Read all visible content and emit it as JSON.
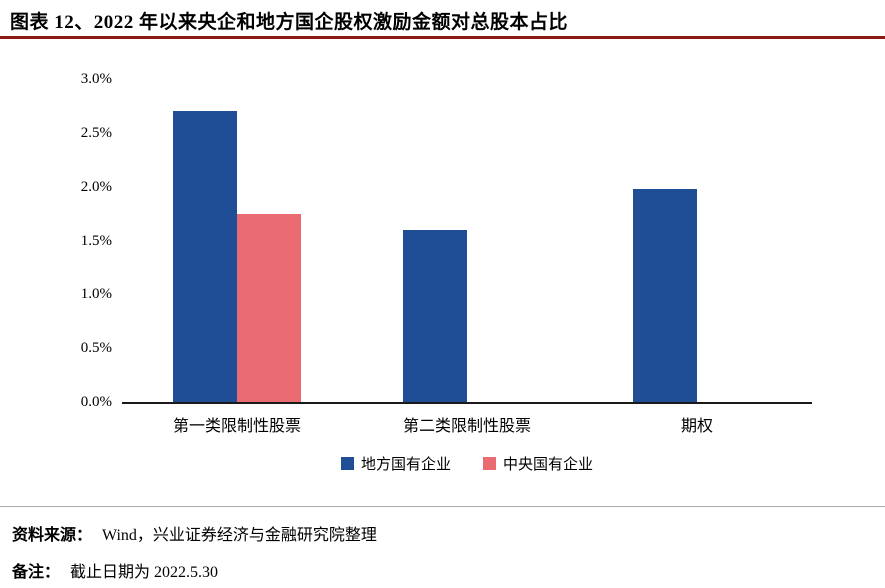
{
  "colors": {
    "title_rule": "#8C1A11",
    "axis": "#1a1a1a",
    "divider": "#ababab"
  },
  "header": {
    "title": "图表 12、2022 年以来央企和地方国企股权激励金额对总股本占比"
  },
  "chart_data": {
    "type": "bar",
    "title": "2022 年以来央企和地方国企股权激励金额对总股本占比",
    "categories": [
      "第一类限制性股票",
      "第二类限制性股票",
      "期权"
    ],
    "series": [
      {
        "name": "地方国有企业",
        "color": "#1F4E96",
        "values": [
          2.7,
          1.6,
          1.98
        ]
      },
      {
        "name": "中央国有企业",
        "color": "#EB6B73",
        "values": [
          1.75,
          null,
          null
        ]
      }
    ],
    "ylim": [
      0,
      3.0
    ],
    "ytick_labels": [
      "0.0%",
      "0.5%",
      "1.0%",
      "1.5%",
      "2.0%",
      "2.5%",
      "3.0%"
    ],
    "xlabel": "",
    "ylabel": "",
    "grid": false,
    "legend_position": "bottom"
  },
  "footer": {
    "source_label": "资料来源：",
    "source_text": "Wind，兴业证券经济与金融研究院整理",
    "note_label": "备注：",
    "note_text": "截止日期为 2022.5.30"
  }
}
